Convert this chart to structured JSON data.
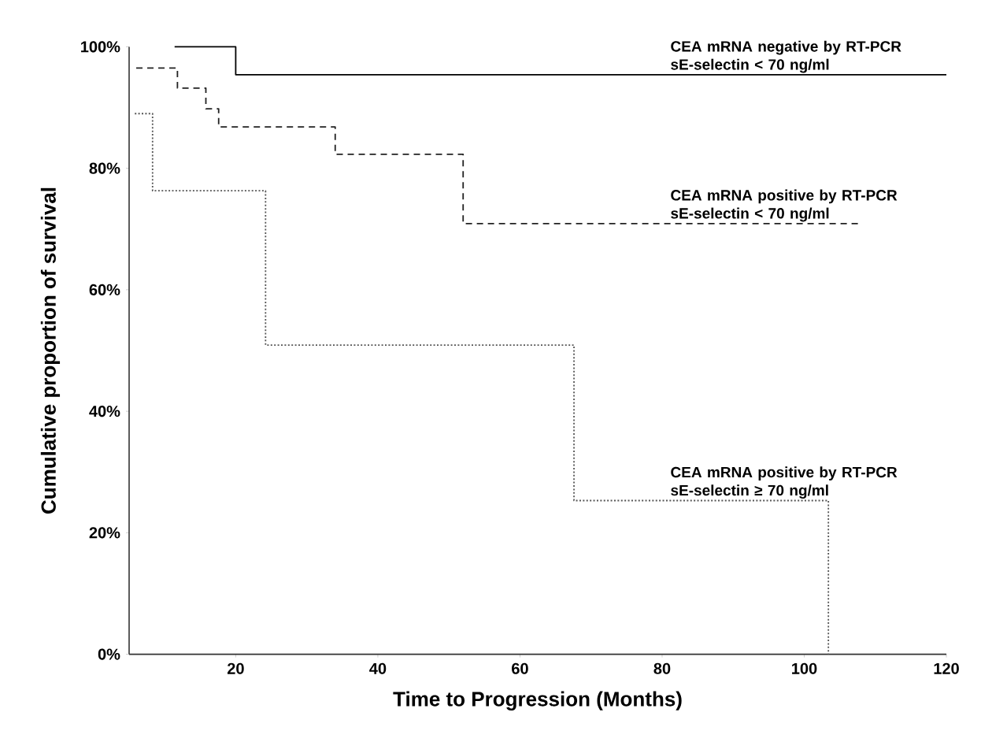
{
  "chart_data": {
    "type": "step",
    "xlabel": "Time to Progression (Months)",
    "ylabel": "Cumulative proportion of survival",
    "xlim": [
      5,
      120
    ],
    "ylim": [
      0,
      100
    ],
    "xticks": [
      20,
      40,
      60,
      80,
      100,
      120
    ],
    "yticks": [
      {
        "value": 0,
        "label": "0%"
      },
      {
        "value": 20,
        "label": "20%"
      },
      {
        "value": 40,
        "label": "40%"
      },
      {
        "value": 60,
        "label": "60%"
      },
      {
        "value": 80,
        "label": "80%"
      },
      {
        "value": 100,
        "label": "100%"
      }
    ],
    "grid": false,
    "legend": false,
    "marker": "none",
    "series": [
      {
        "name": "CEA mRNA negative by RT-PCR sE-selectin < 70 ng/ml",
        "color": "#000000",
        "line_style": "solid",
        "x": [
          11.4,
          20,
          120
        ],
        "values": [
          100,
          95.4,
          95.4
        ]
      },
      {
        "name": "CEA mRNA positive by RT-PCR sE-selectin < 70 ng/ml",
        "color": "#222222",
        "line_style": "dashed",
        "x": [
          6,
          11.8,
          15.8,
          17.6,
          34,
          52,
          107.8
        ],
        "values": [
          96.5,
          93.2,
          89.8,
          86.8,
          82.3,
          70.9,
          70.9
        ]
      },
      {
        "name": "CEA mRNA positive by RT-PCR sE-selectin ≥ 70 ng/ml",
        "color": "#555555",
        "line_style": "dotted",
        "x": [
          5.8,
          8.3,
          24.2,
          67.6,
          103.4
        ],
        "values": [
          89.0,
          76.3,
          50.9,
          25.3,
          0
        ]
      }
    ]
  }
}
